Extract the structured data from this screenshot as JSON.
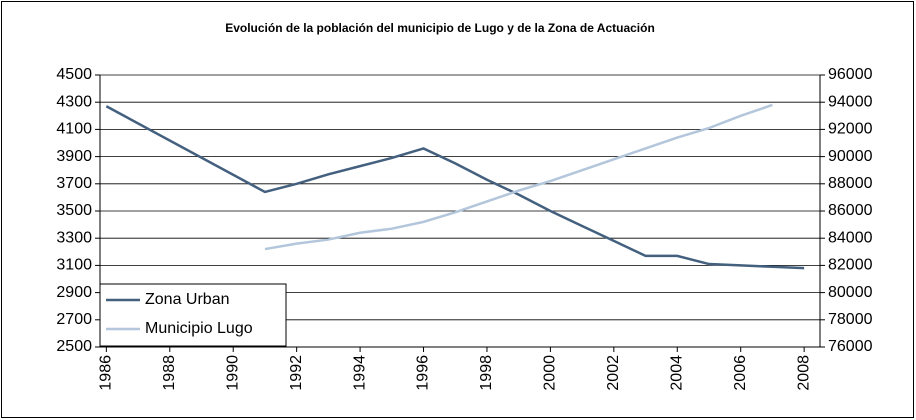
{
  "chart_data": {
    "type": "line",
    "title": "Evolución de la población del municipio de Lugo y de la Zona de Actuación",
    "xlim": [
      1985.8,
      2008.5
    ],
    "xticks": [
      1986,
      1988,
      1990,
      1992,
      1994,
      1996,
      1998,
      2000,
      2002,
      2004,
      2006,
      2008
    ],
    "ylim": [
      2500,
      4500
    ],
    "yticks": [
      2500,
      2700,
      2900,
      3100,
      3300,
      3500,
      3700,
      3900,
      4100,
      4300,
      4500
    ],
    "y2lim": [
      76000,
      96000
    ],
    "y2ticks": [
      76000,
      78000,
      80000,
      82000,
      84000,
      86000,
      88000,
      90000,
      92000,
      94000,
      96000
    ],
    "grid": true,
    "legend": "lower left",
    "series": [
      {
        "name": "Zona Urban",
        "color": "#44607f",
        "x": [
          1986,
          1991,
          1992,
          1993,
          1994,
          1995,
          1996,
          1997,
          1998,
          1999,
          2000,
          2001,
          2002,
          2003,
          2004,
          2005,
          2006,
          2007,
          2008
        ],
        "values": [
          4270,
          3640,
          3700,
          3770,
          3830,
          3890,
          3960,
          3850,
          3730,
          3620,
          3500,
          3390,
          3280,
          3170,
          3170,
          3110,
          3100,
          3090,
          3080
        ]
      },
      {
        "name": "Municipio Lugo",
        "color": "#b3c6db",
        "axis": "y2",
        "x": [
          1991,
          1992,
          1993,
          1994,
          1995,
          1996,
          1997,
          1998,
          1999,
          2000,
          2001,
          2002,
          2003,
          2004,
          2005,
          2006,
          2007
        ],
        "values": [
          83200,
          83600,
          83900,
          84400,
          84700,
          85200,
          85900,
          86700,
          87500,
          88200,
          89000,
          89800,
          90600,
          91400,
          92100,
          93000,
          93800
        ]
      }
    ]
  }
}
